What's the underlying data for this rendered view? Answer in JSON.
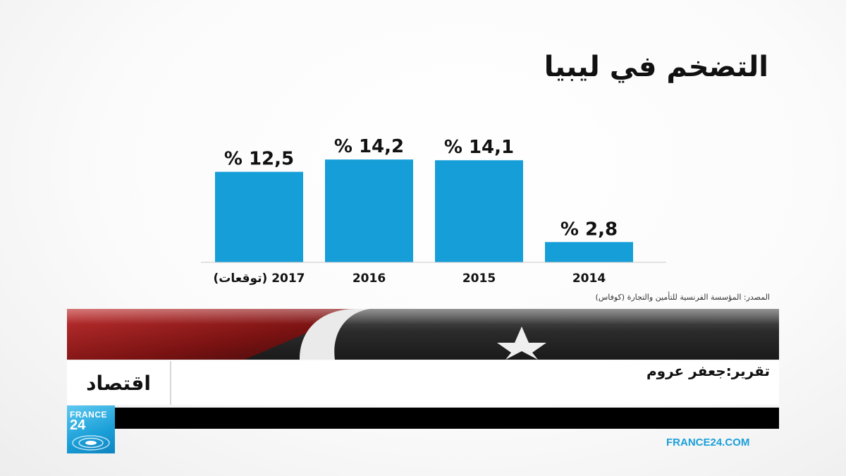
{
  "chart_data": {
    "type": "bar",
    "title": "التضخم في ليبيا",
    "categories": [
      "2017 (توقعات)",
      "2016",
      "2015",
      "2014"
    ],
    "values": [
      12.5,
      14.2,
      14.1,
      2.8
    ],
    "value_labels": [
      "% 12,5",
      "% 14,2",
      "% 14,1",
      "% 2,8"
    ],
    "unit": "%",
    "ylim": [
      0,
      15
    ],
    "grid": false,
    "bar_color": "#169ed8",
    "source": "المصدر: المؤسسة الفرنسية للتأمين والتجارة (كوفاس)"
  },
  "lower_third": {
    "category": "اقتصاد",
    "reporter": "تقرير:جعفر عروم"
  },
  "channel": {
    "logo_line1": "FRANCE",
    "logo_line2": "24",
    "url": "FRANCE24.COM",
    "accent": "#1a9fd8"
  }
}
